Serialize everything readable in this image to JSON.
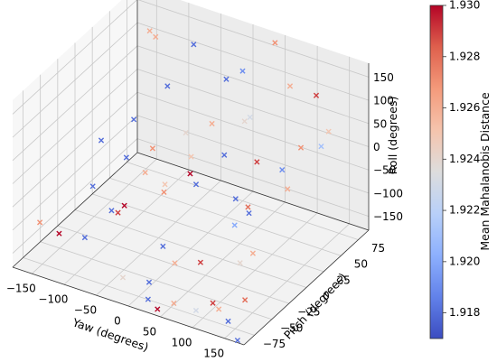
{
  "chart_data": {
    "type": "scatter",
    "projection": "3d",
    "marker": "x",
    "colormap": "coolwarm",
    "x_label": "Yaw (degrees)",
    "y_label": "Pitch (degrees)",
    "z_label": "Roll (degrees)",
    "colorbar_label": "Mean Mahalanobis Distance",
    "xlim": [
      -180,
      180
    ],
    "ylim": [
      -90,
      90
    ],
    "zlim": [
      -180,
      180
    ],
    "clim": [
      1.917,
      1.93
    ],
    "x_ticks": [
      -150,
      -100,
      -50,
      0,
      50,
      100,
      150
    ],
    "x_tick_labels": [
      "−150",
      "−100",
      "−50",
      "0",
      "50",
      "100",
      "150"
    ],
    "y_ticks": [
      -75,
      -50,
      -25,
      0,
      25,
      50,
      75
    ],
    "y_tick_labels": [
      "−75",
      "−50",
      "−25",
      "0",
      "25",
      "50",
      "75"
    ],
    "z_ticks": [
      -150,
      -100,
      -50,
      0,
      50,
      100,
      150
    ],
    "z_tick_labels": [
      "−150",
      "−100",
      "−50",
      "0",
      "50",
      "100",
      "150"
    ],
    "colorbar_ticks": [
      1.918,
      1.92,
      1.922,
      1.924,
      1.926,
      1.928,
      1.93
    ],
    "colorbar_tick_labels": [
      "1.918",
      "1.920",
      "1.922",
      "1.924",
      "1.926",
      "1.928",
      "1.930"
    ],
    "grid": true,
    "points": [
      {
        "x": 45,
        "y": 80,
        "z": 175,
        "c": 1.927
      },
      {
        "x": 120,
        "y": 70,
        "z": 110,
        "c": 1.929
      },
      {
        "x": -60,
        "y": 60,
        "z": 150,
        "c": 1.918
      },
      {
        "x": 160,
        "y": 40,
        "z": 60,
        "c": 1.921
      },
      {
        "x": 90,
        "y": 60,
        "z": 130,
        "c": 1.926
      },
      {
        "x": 150,
        "y": 20,
        "z": 80,
        "c": 1.927
      },
      {
        "x": -20,
        "y": 70,
        "z": 80,
        "c": 1.918
      },
      {
        "x": 0,
        "y": 75,
        "z": 100,
        "c": 1.919
      },
      {
        "x": 30,
        "y": 50,
        "z": 40,
        "c": 1.924
      },
      {
        "x": 60,
        "y": 30,
        "z": 90,
        "c": 1.923
      },
      {
        "x": -130,
        "y": 70,
        "z": 120,
        "c": 1.926
      },
      {
        "x": -90,
        "y": 50,
        "z": 60,
        "c": 1.918
      },
      {
        "x": -110,
        "y": 20,
        "z": 20,
        "c": 1.918
      },
      {
        "x": -40,
        "y": 30,
        "z": 10,
        "c": 1.924
      },
      {
        "x": -150,
        "y": 10,
        "z": -30,
        "c": 1.918
      },
      {
        "x": -70,
        "y": 10,
        "z": -10,
        "c": 1.927
      },
      {
        "x": -10,
        "y": 10,
        "z": 0,
        "c": 1.925
      },
      {
        "x": 20,
        "y": 30,
        "z": -10,
        "c": 1.918
      },
      {
        "x": 10,
        "y": -10,
        "z": 0,
        "c": 1.93
      },
      {
        "x": 30,
        "y": -20,
        "z": 0,
        "c": 1.918
      },
      {
        "x": 110,
        "y": 30,
        "z": 0,
        "c": 1.919
      },
      {
        "x": 140,
        "y": 10,
        "z": 0,
        "c": 1.926
      },
      {
        "x": -100,
        "y": 0,
        "z": -30,
        "c": 1.918
      },
      {
        "x": -60,
        "y": -10,
        "z": -30,
        "c": 1.926
      },
      {
        "x": -40,
        "y": 0,
        "z": -60,
        "c": 1.925
      },
      {
        "x": -120,
        "y": -30,
        "z": -60,
        "c": 1.918
      },
      {
        "x": -80,
        "y": -40,
        "z": -80,
        "c": 1.918
      },
      {
        "x": -60,
        "y": -40,
        "z": -60,
        "c": 1.93
      },
      {
        "x": -70,
        "y": -40,
        "z": -80,
        "c": 1.929
      },
      {
        "x": 0,
        "y": -40,
        "z": -120,
        "c": 1.918
      },
      {
        "x": 40,
        "y": -60,
        "z": -110,
        "c": 1.926
      },
      {
        "x": 80,
        "y": -60,
        "z": -90,
        "c": 1.929
      },
      {
        "x": 140,
        "y": -40,
        "z": -70,
        "c": 1.926
      },
      {
        "x": 160,
        "y": -70,
        "z": -120,
        "c": 1.928
      },
      {
        "x": -170,
        "y": -60,
        "z": -120,
        "c": 1.927
      },
      {
        "x": -140,
        "y": -60,
        "z": -130,
        "c": 1.93
      },
      {
        "x": -100,
        "y": -60,
        "z": -120,
        "c": 1.918
      },
      {
        "x": 20,
        "y": -80,
        "z": -170,
        "c": 1.918
      },
      {
        "x": 60,
        "y": -80,
        "z": -160,
        "c": 1.926
      },
      {
        "x": 110,
        "y": -70,
        "z": -150,
        "c": 1.929
      },
      {
        "x": 150,
        "y": -85,
        "z": -150,
        "c": 1.918
      },
      {
        "x": 120,
        "y": -40,
        "z": -100,
        "c": 1.924
      },
      {
        "x": 90,
        "y": -20,
        "z": -60,
        "c": 1.92
      },
      {
        "x": 70,
        "y": 0,
        "z": -40,
        "c": 1.918
      },
      {
        "x": -20,
        "y": -20,
        "z": -40,
        "c": 1.927
      },
      {
        "x": 0,
        "y": -60,
        "z": -170,
        "c": 1.918
      },
      {
        "x": 40,
        "y": -85,
        "z": -175,
        "c": 1.93
      },
      {
        "x": 170,
        "y": -90,
        "z": -175,
        "c": 1.918
      },
      {
        "x": 100,
        "y": -85,
        "z": -150,
        "c": 1.923
      },
      {
        "x": 130,
        "y": -80,
        "z": -140,
        "c": 1.926
      },
      {
        "x": -30,
        "y": -70,
        "z": -160,
        "c": 1.924
      },
      {
        "x": 80,
        "y": 10,
        "z": -80,
        "c": 1.918
      },
      {
        "x": -10,
        "y": 40,
        "z": 30,
        "c": 1.926
      },
      {
        "x": 60,
        "y": 40,
        "z": -20,
        "c": 1.929
      },
      {
        "x": 150,
        "y": 60,
        "z": 60,
        "c": 1.925
      },
      {
        "x": -150,
        "y": 80,
        "z": 110,
        "c": 1.926
      },
      {
        "x": 100,
        "y": -10,
        "z": -30,
        "c": 1.928
      }
    ]
  }
}
